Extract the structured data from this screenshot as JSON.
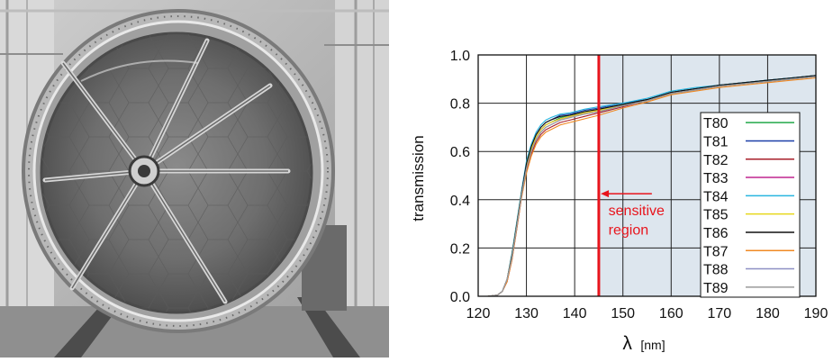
{
  "photo": {
    "subject": "mirror-frame",
    "style": "grayscale photograph"
  },
  "chart_data": {
    "type": "line",
    "xlabel_symbol": "λ",
    "xlabel_unit": "[nm]",
    "ylabel": "transmission",
    "xlim": [
      120,
      190
    ],
    "ylim": [
      0.0,
      1.0
    ],
    "xticks": [
      "120",
      "130",
      "140",
      "150",
      "160",
      "170",
      "180",
      "190"
    ],
    "yticks": [
      "0.0",
      "0.2",
      "0.4",
      "0.6",
      "0.8",
      "1.0"
    ],
    "grid": true,
    "legend_position": "right",
    "cutoff": {
      "x": 145,
      "color": "#e8141c"
    },
    "shaded_region": {
      "from": 145,
      "to": 190,
      "color": "#dde6ee"
    },
    "annotation": {
      "line1": "sensitive",
      "line2": "region",
      "arrow_from_x": 156,
      "arrow_to_x": 145.4,
      "arrow_y": 0.425,
      "color": "#e8141c"
    },
    "x": [
      120,
      122,
      124,
      125,
      126,
      127,
      128,
      129,
      130,
      131,
      132,
      133,
      134,
      135,
      137,
      139,
      140,
      142,
      145,
      150,
      155,
      160,
      165,
      170,
      175,
      180,
      185,
      190
    ],
    "series": [
      {
        "name": "T80",
        "color": "#22a84a",
        "values": [
          0.0,
          0.0,
          0.005,
          0.02,
          0.07,
          0.17,
          0.3,
          0.43,
          0.54,
          0.61,
          0.66,
          0.69,
          0.71,
          0.72,
          0.74,
          0.75,
          0.755,
          0.765,
          0.775,
          0.795,
          0.815,
          0.845,
          0.86,
          0.875,
          0.885,
          0.895,
          0.905,
          0.915
        ]
      },
      {
        "name": "T81",
        "color": "#1c3fa8",
        "values": [
          0.0,
          0.0,
          0.005,
          0.02,
          0.07,
          0.17,
          0.3,
          0.43,
          0.55,
          0.62,
          0.67,
          0.7,
          0.72,
          0.73,
          0.75,
          0.755,
          0.76,
          0.77,
          0.78,
          0.8,
          0.815,
          0.845,
          0.86,
          0.875,
          0.885,
          0.895,
          0.905,
          0.915
        ]
      },
      {
        "name": "T82",
        "color": "#a81f2a",
        "values": [
          0.0,
          0.0,
          0.005,
          0.02,
          0.06,
          0.15,
          0.28,
          0.41,
          0.52,
          0.59,
          0.64,
          0.67,
          0.69,
          0.7,
          0.72,
          0.73,
          0.735,
          0.745,
          0.76,
          0.785,
          0.81,
          0.84,
          0.855,
          0.87,
          0.88,
          0.89,
          0.9,
          0.91
        ]
      },
      {
        "name": "T83",
        "color": "#c0268f",
        "values": [
          0.0,
          0.0,
          0.005,
          0.02,
          0.07,
          0.17,
          0.3,
          0.43,
          0.54,
          0.61,
          0.66,
          0.69,
          0.71,
          0.72,
          0.735,
          0.745,
          0.75,
          0.76,
          0.77,
          0.79,
          0.81,
          0.84,
          0.855,
          0.87,
          0.88,
          0.89,
          0.9,
          0.91
        ]
      },
      {
        "name": "T84",
        "color": "#29b6e0",
        "values": [
          0.0,
          0.0,
          0.005,
          0.02,
          0.07,
          0.18,
          0.31,
          0.44,
          0.56,
          0.63,
          0.68,
          0.71,
          0.73,
          0.74,
          0.755,
          0.76,
          0.765,
          0.775,
          0.785,
          0.8,
          0.82,
          0.85,
          0.865,
          0.875,
          0.885,
          0.895,
          0.905,
          0.915
        ]
      },
      {
        "name": "T85",
        "color": "#e6d81c",
        "values": [
          0.0,
          0.0,
          0.005,
          0.02,
          0.07,
          0.17,
          0.3,
          0.43,
          0.54,
          0.61,
          0.66,
          0.69,
          0.71,
          0.72,
          0.735,
          0.745,
          0.75,
          0.76,
          0.77,
          0.79,
          0.81,
          0.84,
          0.855,
          0.87,
          0.88,
          0.89,
          0.9,
          0.91
        ]
      },
      {
        "name": "T86",
        "color": "#111111",
        "values": [
          0.0,
          0.0,
          0.005,
          0.02,
          0.07,
          0.17,
          0.3,
          0.43,
          0.55,
          0.62,
          0.67,
          0.7,
          0.72,
          0.73,
          0.745,
          0.75,
          0.755,
          0.765,
          0.775,
          0.795,
          0.815,
          0.845,
          0.86,
          0.875,
          0.885,
          0.895,
          0.905,
          0.915
        ]
      },
      {
        "name": "T87",
        "color": "#f08a24",
        "values": [
          0.0,
          0.0,
          0.005,
          0.02,
          0.06,
          0.15,
          0.28,
          0.41,
          0.51,
          0.58,
          0.63,
          0.66,
          0.68,
          0.69,
          0.71,
          0.72,
          0.725,
          0.735,
          0.75,
          0.78,
          0.805,
          0.835,
          0.85,
          0.865,
          0.875,
          0.885,
          0.895,
          0.905
        ]
      },
      {
        "name": "T88",
        "color": "#8e90c4",
        "values": [
          0.0,
          0.0,
          0.005,
          0.02,
          0.07,
          0.16,
          0.29,
          0.42,
          0.53,
          0.6,
          0.65,
          0.68,
          0.7,
          0.71,
          0.73,
          0.74,
          0.745,
          0.755,
          0.765,
          0.79,
          0.81,
          0.84,
          0.855,
          0.87,
          0.88,
          0.89,
          0.9,
          0.91
        ]
      },
      {
        "name": "T89",
        "color": "#9a9a9a",
        "values": [
          0.0,
          0.0,
          0.005,
          0.02,
          0.07,
          0.16,
          0.29,
          0.42,
          0.53,
          0.6,
          0.65,
          0.68,
          0.7,
          0.71,
          0.73,
          0.74,
          0.745,
          0.755,
          0.765,
          0.79,
          0.81,
          0.84,
          0.855,
          0.87,
          0.88,
          0.89,
          0.9,
          0.91
        ]
      }
    ]
  }
}
